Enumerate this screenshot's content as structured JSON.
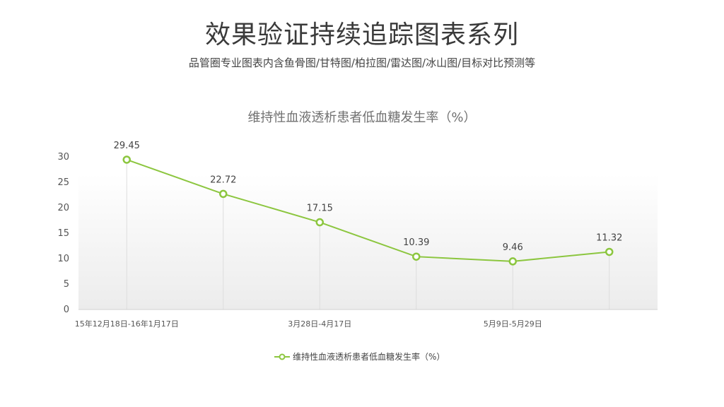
{
  "header": {
    "title": "效果验证持续追踪图表系列",
    "subtitle": "品管圈专业图表内含鱼骨图/甘特图/柏拉图/雷达图/冰山图/目标对比预测等"
  },
  "chart_data": {
    "type": "line",
    "title": "维持性血液透析患者低血糖发生率（%）",
    "categories": [
      "15年12月18日-16年1月17日",
      "",
      "3月28日-4月17日",
      "",
      "5月9日-5月29日",
      ""
    ],
    "series": [
      {
        "name": "维持性血液透析患者低血糖发生率（%）",
        "values": [
          29.45,
          22.72,
          17.15,
          10.39,
          9.46,
          11.32
        ],
        "labels": [
          "29.45",
          "22.72",
          "17.15",
          "10.39",
          "9.46",
          "11.32"
        ]
      }
    ],
    "ylim": [
      0,
      30
    ],
    "yticks": [
      "0",
      "5",
      "10",
      "15",
      "20",
      "25",
      "30"
    ],
    "xlabel": "",
    "ylabel": "",
    "legend_position": "bottom",
    "grid": false,
    "colors": {
      "line": "#8cc63f",
      "axis": "#d0d0d0",
      "drop_line": "#dddddd"
    }
  }
}
